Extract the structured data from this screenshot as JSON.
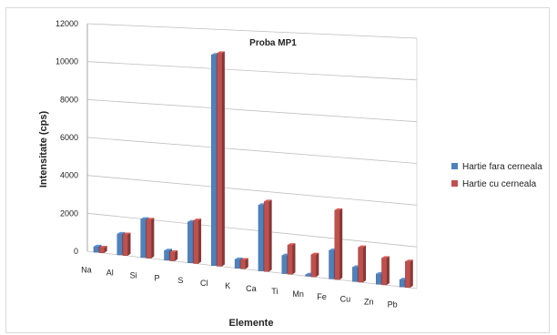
{
  "chart_data": {
    "type": "bar",
    "title": "Proba MP1",
    "xlabel": "Elemente",
    "ylabel": "Intensitate (cps)",
    "ylim": [
      0,
      12000
    ],
    "yticks": [
      "0",
      "2000",
      "4000",
      "6000",
      "8000",
      "10000",
      "12000"
    ],
    "grid": true,
    "legend_position": "right",
    "categories": [
      "Na",
      "Al",
      "Si",
      "P",
      "S",
      "Cl",
      "K",
      "Ca",
      "Ti",
      "Mn",
      "Fe",
      "Cu",
      "Zn",
      "Pb"
    ],
    "series": [
      {
        "name": "Hartie fara cerneala",
        "color": "#4f81bd",
        "values": [
          300,
          1100,
          2000,
          500,
          2100,
          10700,
          450,
          3300,
          900,
          80,
          1400,
          700,
          500,
          350
        ]
      },
      {
        "name": "Hartie cu cerneala",
        "color": "#c0504d",
        "values": [
          280,
          1100,
          2000,
          450,
          2200,
          10800,
          450,
          3500,
          1450,
          1100,
          3400,
          1700,
          1300,
          1250
        ]
      }
    ]
  }
}
